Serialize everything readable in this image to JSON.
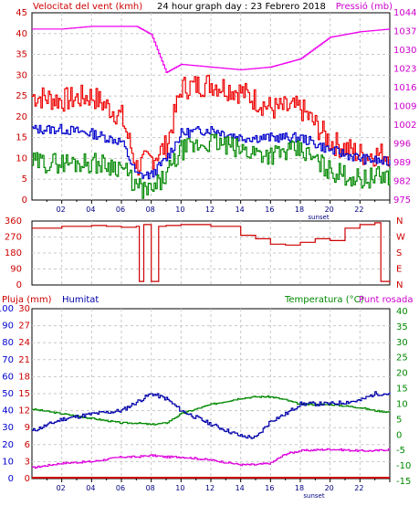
{
  "chart_data": [
    {
      "type": "line",
      "title": "24 hour graph day : 23 Febrero 2018",
      "left_label": "Velocitat del vent (kmh)",
      "right_label": "Pressió (mb)",
      "xlabel": "",
      "x_ticks": [
        "02",
        "04",
        "06",
        "08",
        "10",
        "12",
        "14",
        "16",
        "18",
        "20",
        "22",
        ""
      ],
      "x_marker": "sunset",
      "left_ticks": [
        "0",
        "5",
        "10",
        "15",
        "20",
        "25",
        "30",
        "35",
        "40",
        "45"
      ],
      "right_ticks": [
        "975",
        "982",
        "989",
        "996",
        "1002",
        "1009",
        "1016",
        "1023",
        "1030",
        "1037",
        "1044"
      ],
      "ylim_left": [
        0,
        45
      ],
      "ylim_right": [
        975,
        1044
      ],
      "grid": true,
      "colors": {
        "pressure": "#ee00ee",
        "gust": "#ee0000",
        "average": "#0000cc",
        "wind": "#008800"
      },
      "x": [
        0,
        2,
        4,
        6,
        7,
        8,
        9,
        10,
        12,
        14,
        16,
        18,
        20,
        22,
        24
      ],
      "series": [
        {
          "key": "pressure",
          "axis": "right",
          "values": [
            1038,
            1038,
            1039,
            1039,
            1039,
            1036,
            1022,
            1025,
            1024,
            1023,
            1024,
            1027,
            1035,
            1037,
            1038
          ]
        },
        {
          "key": "gust",
          "axis": "left",
          "values": [
            25,
            24,
            25,
            20,
            8,
            10,
            13,
            27,
            28,
            26,
            22,
            22,
            14,
            11,
            11
          ]
        },
        {
          "key": "average",
          "axis": "left",
          "values": [
            17,
            17,
            16,
            14,
            6,
            6,
            10,
            16,
            17,
            15,
            15,
            15,
            12,
            10,
            9
          ]
        },
        {
          "key": "wind",
          "axis": "left",
          "values": [
            9,
            9,
            9,
            8,
            3,
            2,
            6,
            12,
            14,
            12,
            11,
            12,
            7,
            5,
            6
          ]
        }
      ]
    },
    {
      "type": "line",
      "left_ticks": [
        "0",
        "90",
        "180",
        "270",
        "360"
      ],
      "right_ticks": [
        "N",
        "E",
        "S",
        "W",
        "N"
      ],
      "ylim": [
        0,
        360
      ],
      "grid": true,
      "colors": {
        "direction": "#cc0000"
      },
      "x": [
        0,
        2,
        4,
        5,
        6,
        7,
        7.2,
        7.5,
        8,
        8.5,
        9,
        10,
        11,
        12,
        14,
        15,
        16,
        17,
        18,
        19,
        20,
        21,
        22,
        23,
        23.4,
        24
      ],
      "series": [
        {
          "key": "direction",
          "values": [
            320,
            330,
            335,
            330,
            325,
            330,
            20,
            340,
            20,
            330,
            335,
            340,
            340,
            330,
            280,
            260,
            230,
            225,
            240,
            260,
            250,
            320,
            340,
            350,
            20,
            15
          ]
        }
      ]
    },
    {
      "type": "line",
      "rain_label": "Pluja (mm)",
      "humidity_label": "Humitat",
      "temperature_label": "Temperatura (°C)",
      "dewpoint_label": "Punt rosada",
      "x_ticks": [
        "02",
        "04",
        "06",
        "08",
        "10",
        "12",
        "14",
        "16",
        "18",
        "20",
        "22",
        ""
      ],
      "x_marker": "sunset",
      "rain_ticks": [
        "0",
        "3",
        "6",
        "9",
        "12",
        "15",
        "18",
        "21",
        "24",
        "27",
        "30"
      ],
      "humidity_ticks": [
        "0",
        "10",
        "20",
        "30",
        "40",
        "50",
        "60",
        "70",
        "80",
        "90",
        "100"
      ],
      "temp_ticks": [
        "-15",
        "-10",
        "-5",
        "0",
        "5",
        "10",
        "15",
        "20",
        "25",
        "30",
        "35",
        "40"
      ],
      "ylim_rain": [
        0,
        30
      ],
      "ylim_humidity": [
        0,
        100
      ],
      "ylim_temp": [
        -15,
        40
      ],
      "grid": true,
      "colors": {
        "rain": "#cc0000",
        "humidity": "#0000aa",
        "temperature": "#008800",
        "dewpoint": "#dd00dd",
        "rain_axis": "#cc0000",
        "humidity_axis": "#0000cc",
        "temp_axis": "#008800"
      },
      "x": [
        0,
        2,
        4,
        6,
        7,
        8,
        9,
        10,
        12,
        14,
        15,
        16,
        17,
        18,
        20,
        22,
        23,
        24
      ],
      "series": [
        {
          "key": "temperature",
          "axis": "temp",
          "values": [
            7.5,
            6,
            4.5,
            3,
            3,
            2.5,
            3,
            6,
            9,
            11,
            11.5,
            11.5,
            10.5,
            9,
            9,
            8,
            7,
            6.5
          ]
        },
        {
          "key": "humidity",
          "axis": "humidity",
          "values": [
            28,
            35,
            38,
            40,
            45,
            50,
            47,
            40,
            32,
            25,
            24,
            34,
            38,
            44,
            44,
            46,
            50,
            50
          ]
        },
        {
          "key": "dewpoint",
          "axis": "temp",
          "values": [
            -11.5,
            -10,
            -9.5,
            -8,
            -8,
            -7.5,
            -8,
            -8,
            -9,
            -10.5,
            -10.5,
            -10,
            -7,
            -6,
            -5.5,
            -6,
            -6,
            -5.5
          ]
        },
        {
          "key": "rain",
          "axis": "rain",
          "values": [
            0,
            0,
            0,
            0,
            0,
            0,
            0,
            0,
            0,
            0,
            0,
            0,
            0,
            0,
            0,
            0,
            0,
            0
          ]
        }
      ]
    }
  ]
}
